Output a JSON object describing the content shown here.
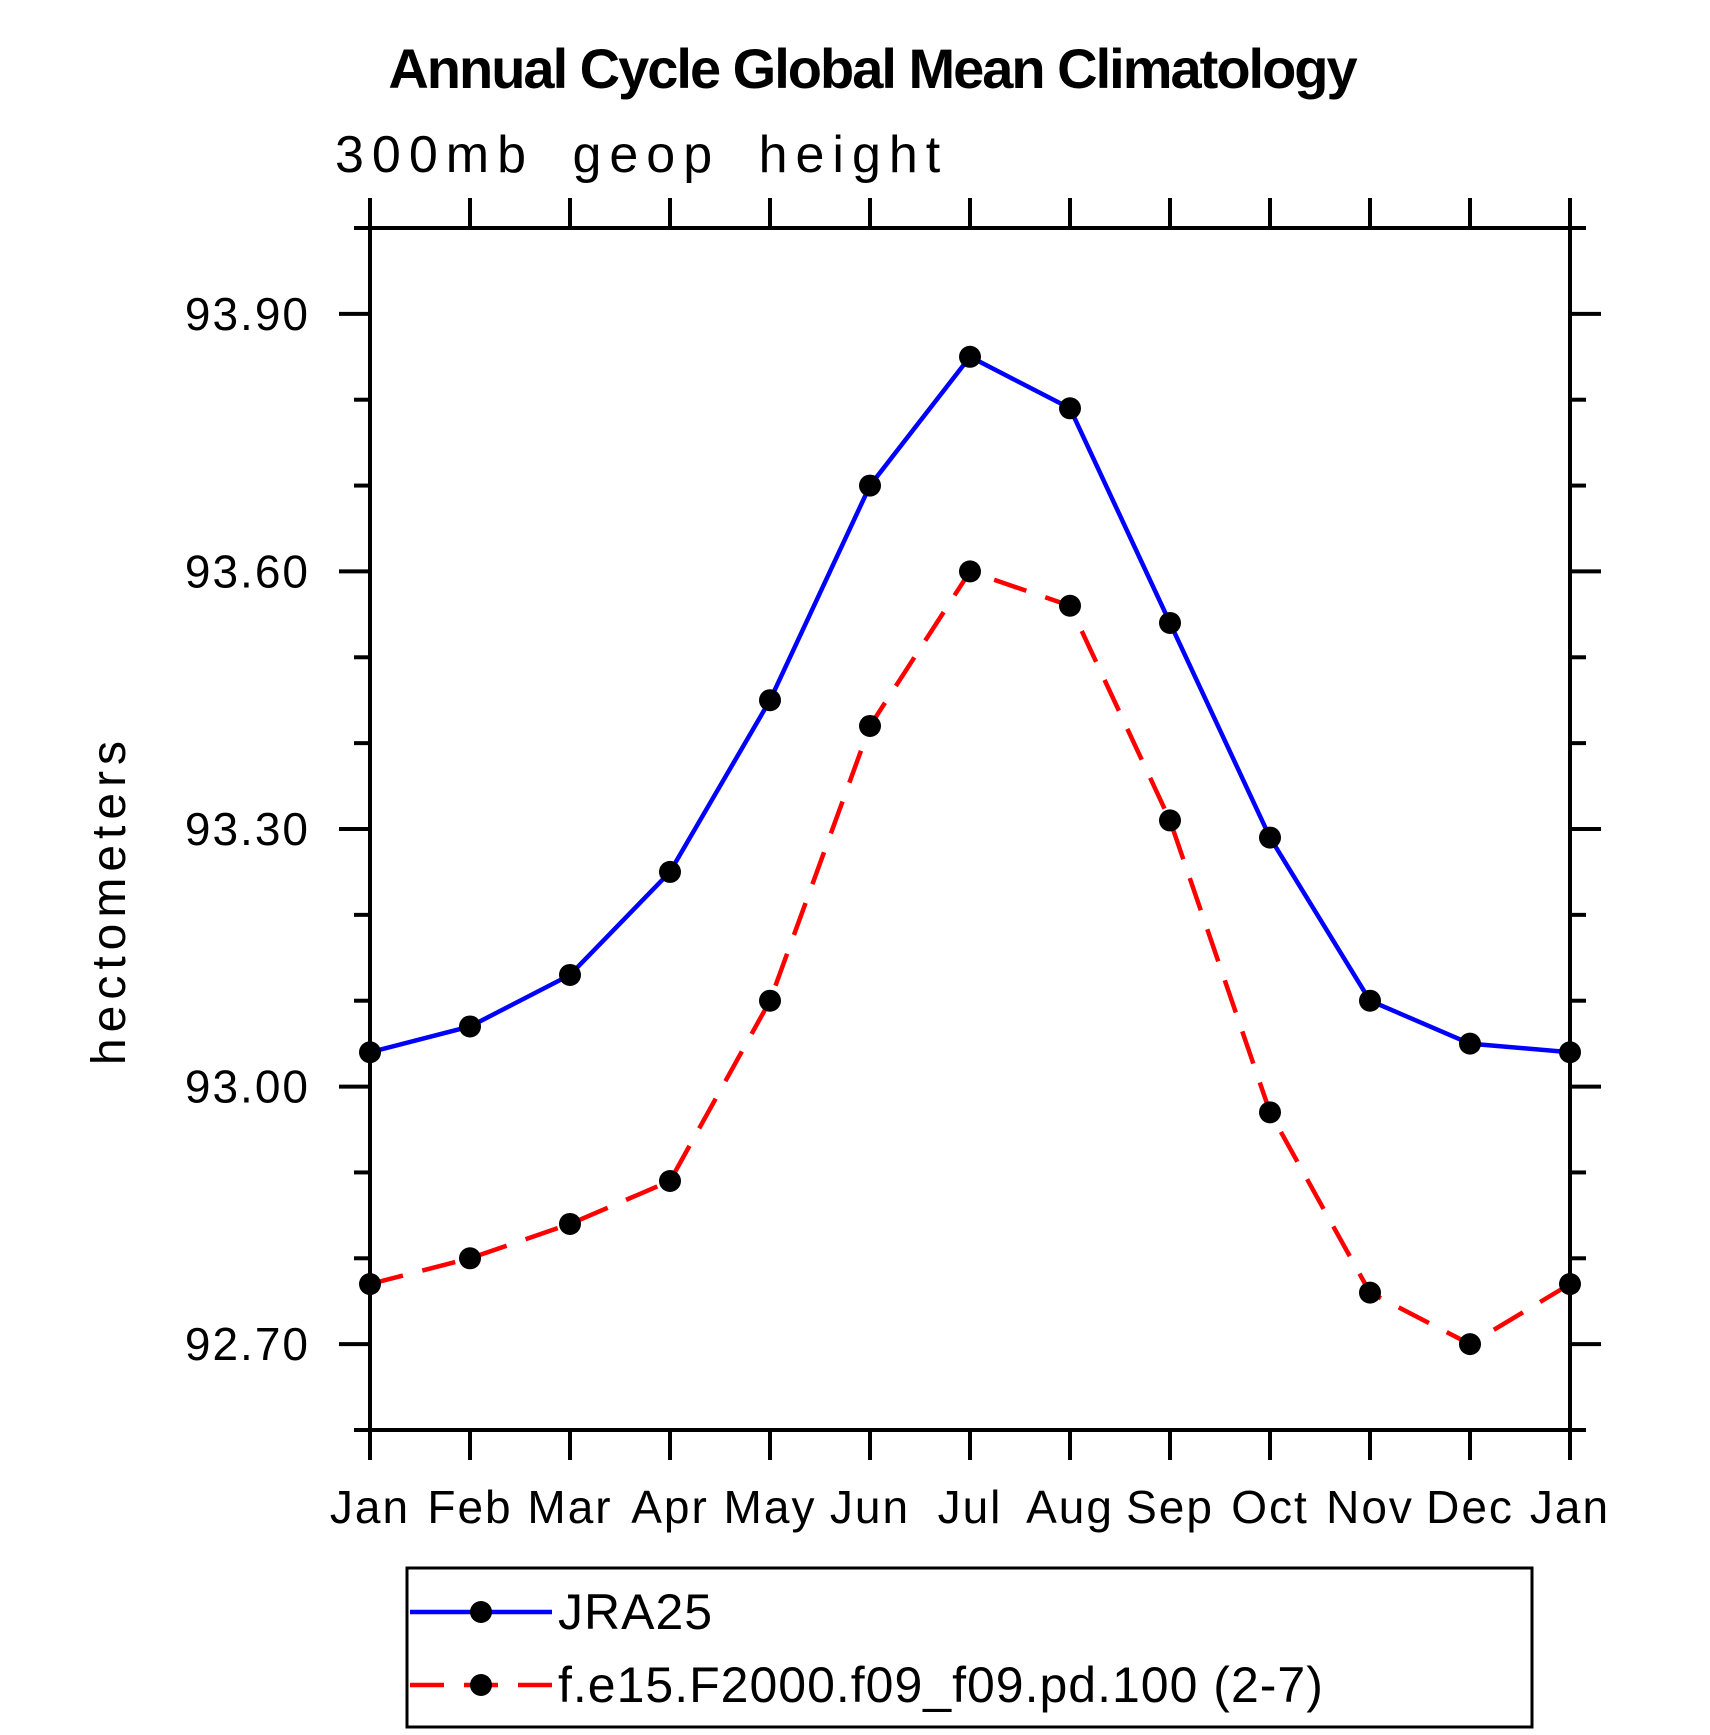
{
  "chart_data": {
    "type": "line",
    "title": "Annual Cycle Global Mean Climatology",
    "subtitle": "300mb geop height",
    "ylabel": "hectometers",
    "categories": [
      "Jan",
      "Feb",
      "Mar",
      "Apr",
      "May",
      "Jun",
      "Jul",
      "Aug",
      "Sep",
      "Oct",
      "Nov",
      "Dec",
      "Jan"
    ],
    "ylim": [
      92.6,
      94.0
    ],
    "ytick_major": [
      92.7,
      93.0,
      93.3,
      93.6,
      93.9
    ],
    "ytick_major_labels": [
      "92.70",
      "93.00",
      "93.30",
      "93.60",
      "93.90"
    ],
    "ytick_minor_step": 0.1,
    "grid": false,
    "legend_position": "bottom",
    "series": [
      {
        "name": "JRA25",
        "color": "#0000FF",
        "style": "solid",
        "marker": "circle",
        "marker_color": "#000000",
        "values": [
          93.04,
          93.07,
          93.13,
          93.25,
          93.45,
          93.7,
          93.85,
          93.79,
          93.54,
          93.29,
          93.1,
          93.05,
          93.04
        ]
      },
      {
        "name": "f.e15.F2000.f09_f09.pd.100 (2-7)",
        "color": "#FF0000",
        "style": "dashed",
        "marker": "circle",
        "marker_color": "#000000",
        "values": [
          92.77,
          92.8,
          92.84,
          92.89,
          93.1,
          93.42,
          93.6,
          93.56,
          93.31,
          92.97,
          92.76,
          92.7,
          92.77
        ]
      }
    ]
  }
}
